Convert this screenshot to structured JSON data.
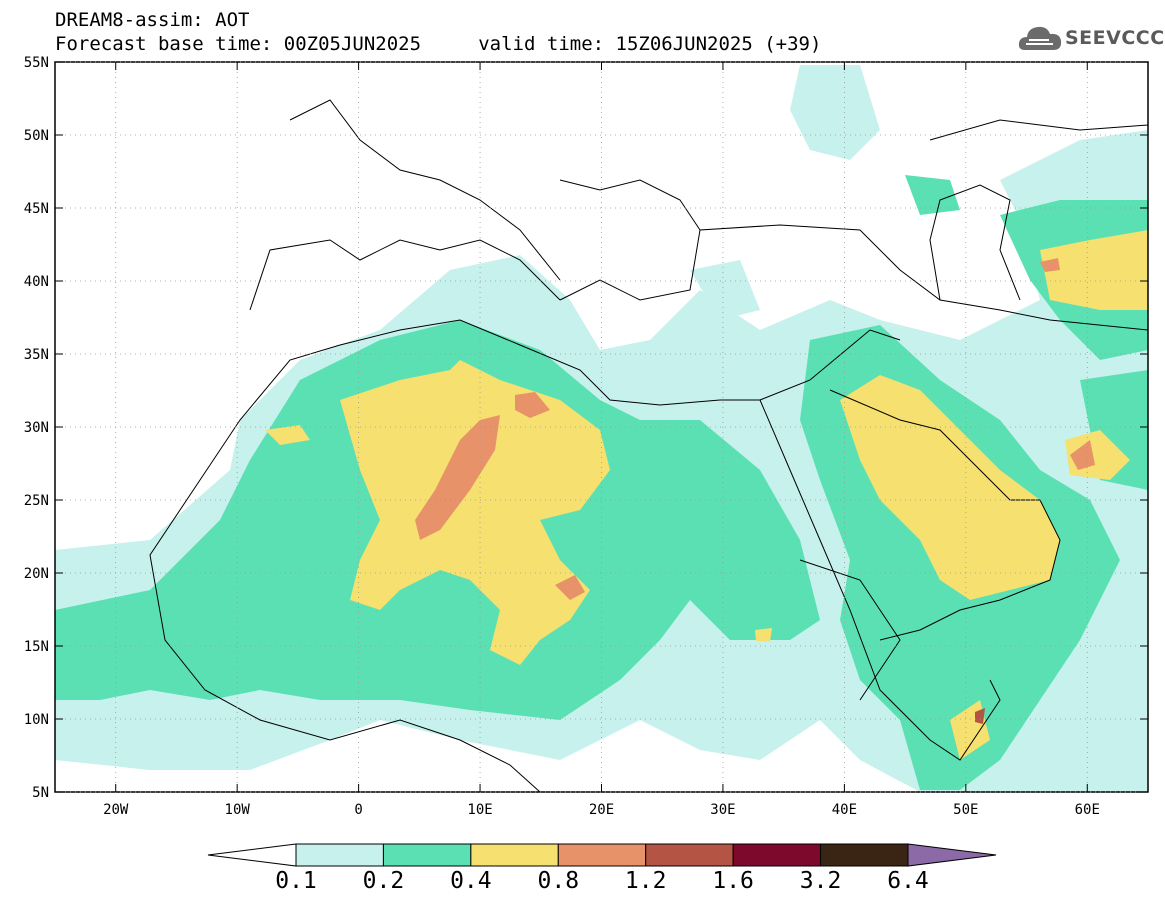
{
  "header": {
    "title": "DREAM8-assim: AOT",
    "subtitle": "Forecast base time: 00Z05JUN2025     valid time: 15Z06JUN2025 (+39)",
    "logo_text": "SEEVCCC"
  },
  "map": {
    "lon_range": [
      -25,
      65
    ],
    "lat_range": [
      5,
      55
    ],
    "lat_ticks": [
      "55N",
      "50N",
      "45N",
      "40N",
      "35N",
      "30N",
      "25N",
      "20N",
      "15N",
      "10N",
      "5N"
    ],
    "lon_ticks": [
      "20W",
      "10W",
      "0",
      "10E",
      "20E",
      "30E",
      "40E",
      "50E",
      "60E"
    ]
  },
  "colorbar": {
    "labels": [
      "0.1",
      "0.2",
      "0.4",
      "0.8",
      "1.2",
      "1.6",
      "3.2",
      "6.4"
    ],
    "colors": [
      "#c6f1ec",
      "#5be0b3",
      "#f5e070",
      "#e8926a",
      "#b45444",
      "#7d0a2c",
      "#3a2414",
      "#8c6aa8"
    ],
    "under_color": "#ffffff"
  }
}
